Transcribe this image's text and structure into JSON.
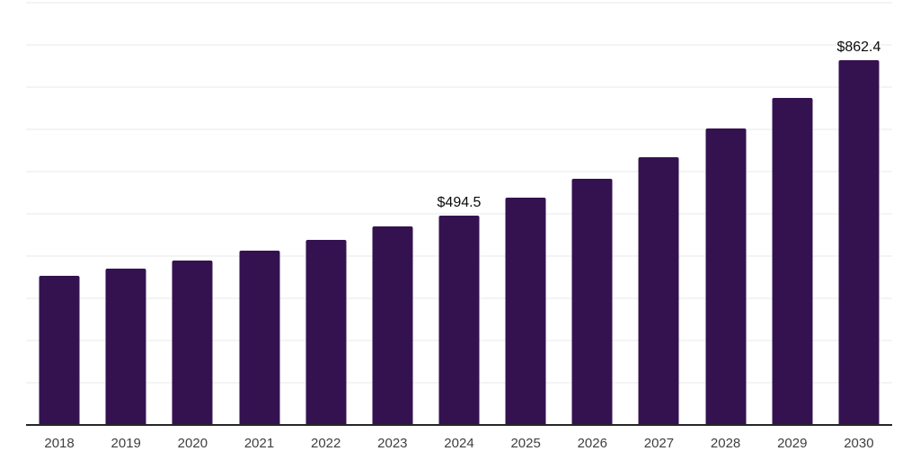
{
  "chart_data": {
    "type": "bar",
    "title": "",
    "xlabel": "",
    "ylabel": "",
    "categories": [
      "2018",
      "2019",
      "2020",
      "2021",
      "2022",
      "2023",
      "2024",
      "2025",
      "2026",
      "2027",
      "2028",
      "2029",
      "2030"
    ],
    "values": [
      351.0,
      368.0,
      387.0,
      411.5,
      436.0,
      469.0,
      494.5,
      537.0,
      581.0,
      633.0,
      700.0,
      772.0,
      862.4
    ],
    "data_labels": [
      "",
      "",
      "",
      "",
      "",
      "",
      "$494.5",
      "",
      "",
      "",
      "",
      "",
      "$862.4"
    ],
    "ylim": [
      0,
      1000
    ],
    "gridline_step": 100,
    "grid": "horizontal-only",
    "legend": false,
    "y_tick_labels_visible": false,
    "colors": {
      "bar": "#341250",
      "axis_line": "#262626",
      "gridline": "#f4f4f4",
      "tick_label": "#3f3f3f",
      "data_label": "#0a0a0a",
      "background": "#ffffff"
    }
  }
}
